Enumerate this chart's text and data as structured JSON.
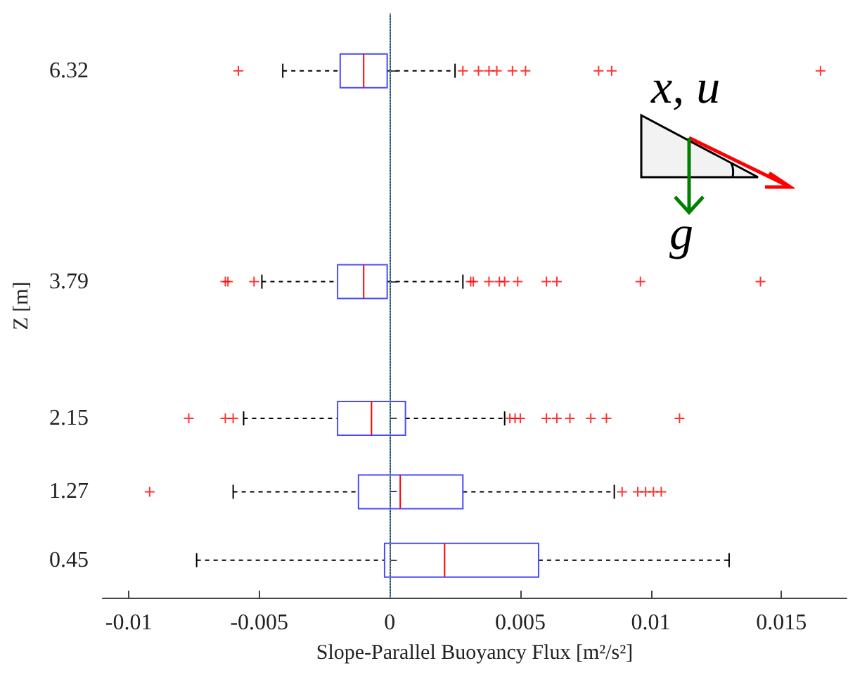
{
  "chart_data": {
    "type": "box",
    "orientation": "horizontal",
    "x": [
      6.32,
      3.79,
      2.15,
      1.27,
      0.45
    ],
    "series": [
      {
        "color": "#4a4aff",
        "boxes": [
          {
            "low": -0.0041,
            "q1": -0.0019,
            "median": -0.001,
            "q3": -0.0001,
            "high": 0.0025,
            "outliers": [
              -0.0058,
              0.0028,
              0.0034,
              0.0038,
              0.0041,
              0.0047,
              0.0052,
              0.008,
              0.0085,
              0.0165
            ]
          },
          {
            "low": -0.0049,
            "q1": -0.002,
            "median": -0.001,
            "q3": -0.0001,
            "high": 0.0028,
            "outliers": [
              -0.0063,
              -0.0062,
              -0.0052,
              0.0031,
              0.0032,
              0.0038,
              0.0042,
              0.0044,
              0.0049,
              0.006,
              0.0064,
              0.0096,
              0.0142
            ]
          },
          {
            "low": -0.0056,
            "q1": -0.002,
            "median": -0.0007,
            "q3": 0.0006,
            "high": 0.0044,
            "outliers": [
              -0.0077,
              -0.0063,
              -0.006,
              0.0046,
              0.0048,
              0.005,
              0.006,
              0.0064,
              0.0069,
              0.0077,
              0.0083,
              0.0111
            ]
          },
          {
            "low": -0.006,
            "q1": -0.0012,
            "median": 0.0004,
            "q3": 0.0028,
            "high": 0.0086,
            "outliers": [
              -0.0092,
              0.0089,
              0.0095,
              0.0098,
              0.0101,
              0.0104
            ]
          },
          {
            "low": -0.0074,
            "q1": -0.0002,
            "median": 0.0021,
            "q3": 0.0057,
            "high": 0.013
          }
        ]
      }
    ],
    "xlabel": "Slope-Parallel Buoyancy Flux [m²/s²]",
    "ylabel": "Z [m]",
    "xlim": [
      -0.011,
      0.0175
    ],
    "xticks": [
      -0.01,
      -0.005,
      0,
      0.005,
      0.01,
      0.015
    ],
    "ylim": [
      0,
      7
    ],
    "yticks": [
      0.45,
      1.27,
      2.15,
      3.79,
      6.32
    ],
    "ref_lines": [
      {
        "axis": "x",
        "value": 0,
        "color": "#4a90d0",
        "line_style": "dotted"
      }
    ],
    "marker": "cross",
    "annotations": [
      "x, u",
      "g⃗"
    ]
  }
}
